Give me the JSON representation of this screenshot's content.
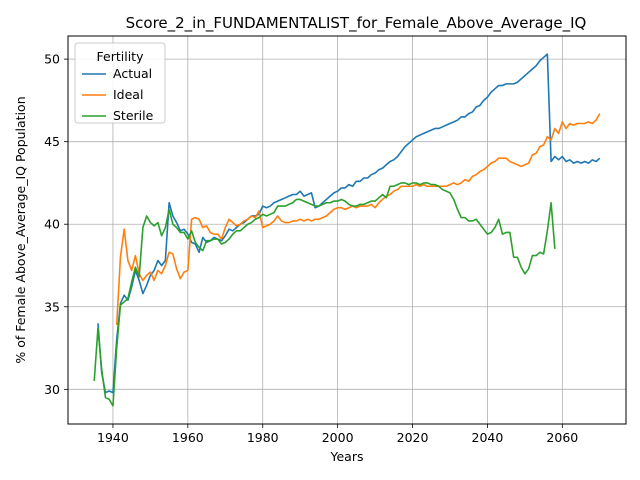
{
  "chart_data": {
    "type": "line",
    "title": "Score_2_in_FUNDAMENTALIST_for_Female_Above_Average_IQ",
    "xlabel": "Years",
    "ylabel": "% of Female Above_Average_IQ Population",
    "xlim": [
      1928,
      2077
    ],
    "ylim": [
      27.9,
      51.4
    ],
    "xticks": [
      1940,
      1960,
      1980,
      2000,
      2020,
      2040,
      2060
    ],
    "yticks": [
      30,
      35,
      40,
      45,
      50
    ],
    "grid": true,
    "legend": {
      "title": "Fertility",
      "placement": "top-left"
    },
    "colors": {
      "Actual": "#1f77b4",
      "Ideal": "#ff7f0e",
      "Sterile": "#2ca02c"
    },
    "series": [
      {
        "name": "Actual",
        "x": [
          1936,
          1937,
          1938,
          1939,
          1940,
          1941,
          1942,
          1943,
          1944,
          1945,
          1946,
          1947,
          1948,
          1949,
          1950,
          1951,
          1952,
          1953,
          1954,
          1955,
          1956,
          1957,
          1958,
          1959,
          1960,
          1961,
          1962,
          1963,
          1964,
          1965,
          1966,
          1967,
          1968,
          1969,
          1970,
          1971,
          1972,
          1973,
          1974,
          1975,
          1976,
          1977,
          1978,
          1979,
          1980,
          1981,
          1982,
          1983,
          1984,
          1985,
          1986,
          1987,
          1988,
          1989,
          1990,
          1991,
          1992,
          1993,
          1994,
          1995,
          1996,
          1997,
          1998,
          1999,
          2000,
          2001,
          2002,
          2003,
          2004,
          2005,
          2006,
          2007,
          2008,
          2009,
          2010,
          2011,
          2012,
          2013,
          2014,
          2015,
          2016,
          2017,
          2018,
          2019,
          2020,
          2021,
          2022,
          2023,
          2024,
          2025,
          2026,
          2027,
          2028,
          2029,
          2030,
          2031,
          2032,
          2033,
          2034,
          2035,
          2036,
          2037,
          2038,
          2039,
          2040,
          2041,
          2042,
          2043,
          2044,
          2045,
          2046,
          2047,
          2048,
          2049,
          2050,
          2051,
          2052,
          2053,
          2054,
          2055,
          2056,
          2057,
          2058,
          2059,
          2060,
          2061,
          2062,
          2063,
          2064,
          2065,
          2066,
          2067,
          2068,
          2069,
          2070
        ],
        "values": [
          34.0,
          31.0,
          29.8,
          29.9,
          29.8,
          33.0,
          35.2,
          35.7,
          35.4,
          36.2,
          37.2,
          36.6,
          35.8,
          36.3,
          36.9,
          37.2,
          37.8,
          37.5,
          37.8,
          41.3,
          40.5,
          40.1,
          39.6,
          39.7,
          39.4,
          38.9,
          38.8,
          38.3,
          39.2,
          38.9,
          39.0,
          39.2,
          39.1,
          39.0,
          39.3,
          39.7,
          39.6,
          39.8,
          40.0,
          40.1,
          40.3,
          40.5,
          40.5,
          40.6,
          41.1,
          41.0,
          41.1,
          41.3,
          41.4,
          41.5,
          41.6,
          41.7,
          41.8,
          41.8,
          42.0,
          41.7,
          41.8,
          41.9,
          41.0,
          41.1,
          41.3,
          41.5,
          41.7,
          41.9,
          42.0,
          42.2,
          42.2,
          42.4,
          42.3,
          42.6,
          42.6,
          42.8,
          42.8,
          43.0,
          43.1,
          43.3,
          43.4,
          43.6,
          43.8,
          43.9,
          44.1,
          44.4,
          44.7,
          44.9,
          45.1,
          45.3,
          45.4,
          45.5,
          45.6,
          45.7,
          45.8,
          45.8,
          45.9,
          46.0,
          46.1,
          46.2,
          46.3,
          46.5,
          46.5,
          46.7,
          46.8,
          47.1,
          47.2,
          47.5,
          47.7,
          48.0,
          48.2,
          48.4,
          48.4,
          48.5,
          48.5,
          48.5,
          48.6,
          48.8,
          49.0,
          49.2,
          49.4,
          49.6,
          49.9,
          50.1,
          50.3,
          43.8,
          44.1,
          43.9,
          44.1,
          43.8,
          43.9,
          43.7,
          43.8,
          43.7,
          43.8,
          43.7,
          43.9,
          43.8,
          44.0
        ],
        "series_note_omitted": true
      },
      {
        "name": "Ideal",
        "x": [
          1941,
          1942,
          1943,
          1944,
          1945,
          1946,
          1947,
          1948,
          1949,
          1950,
          1951,
          1952,
          1953,
          1954,
          1955,
          1956,
          1957,
          1958,
          1959,
          1960,
          1961,
          1962,
          1963,
          1964,
          1965,
          1966,
          1967,
          1968,
          1969,
          1970,
          1971,
          1972,
          1973,
          1974,
          1975,
          1976,
          1977,
          1978,
          1979,
          1980,
          1981,
          1982,
          1983,
          1984,
          1985,
          1986,
          1987,
          1988,
          1989,
          1990,
          1991,
          1992,
          1993,
          1994,
          1995,
          1996,
          1997,
          1998,
          1999,
          2000,
          2001,
          2002,
          2003,
          2004,
          2005,
          2006,
          2007,
          2008,
          2009,
          2010,
          2011,
          2012,
          2013,
          2014,
          2015,
          2016,
          2017,
          2018,
          2019,
          2020,
          2021,
          2022,
          2023,
          2024,
          2025,
          2026,
          2027,
          2028,
          2029,
          2030,
          2031,
          2032,
          2033,
          2034,
          2035,
          2036,
          2037,
          2038,
          2039,
          2040,
          2041,
          2042,
          2043,
          2044,
          2045,
          2046,
          2047,
          2048,
          2049,
          2050,
          2051,
          2052,
          2053,
          2054,
          2055,
          2056,
          2057,
          2058,
          2059,
          2060,
          2061,
          2062,
          2063,
          2064,
          2065,
          2066,
          2067,
          2068,
          2069,
          2070
        ],
        "values": [
          33.9,
          38.0,
          39.7,
          37.8,
          37.2,
          38.1,
          37.0,
          36.6,
          36.9,
          37.1,
          36.6,
          37.2,
          37.0,
          37.5,
          38.3,
          38.2,
          37.3,
          36.7,
          37.1,
          37.2,
          40.3,
          40.4,
          40.3,
          39.8,
          39.9,
          39.5,
          39.4,
          39.4,
          39.1,
          39.8,
          40.3,
          40.1,
          39.9,
          40.0,
          40.2,
          40.3,
          40.5,
          40.4,
          40.8,
          39.8,
          39.9,
          40.0,
          40.2,
          40.5,
          40.2,
          40.1,
          40.1,
          40.2,
          40.2,
          40.3,
          40.2,
          40.3,
          40.2,
          40.3,
          40.3,
          40.4,
          40.5,
          40.7,
          40.9,
          41.0,
          41.0,
          40.9,
          41.0,
          41.1,
          41.0,
          41.1,
          41.1,
          41.1,
          41.2,
          41.0,
          41.3,
          41.5,
          41.7,
          41.8,
          42.0,
          42.1,
          42.3,
          42.3,
          42.3,
          42.3,
          42.4,
          42.3,
          42.4,
          42.3,
          42.3,
          42.3,
          42.3,
          42.3,
          42.3,
          42.4,
          42.5,
          42.4,
          42.5,
          42.7,
          42.6,
          42.9,
          43.0,
          43.2,
          43.3,
          43.5,
          43.7,
          43.8,
          44.0,
          44.0,
          44.0,
          43.8,
          43.7,
          43.6,
          43.5,
          43.6,
          43.7,
          44.2,
          44.3,
          44.7,
          44.8,
          45.3,
          45.1,
          45.8,
          45.5,
          46.2,
          45.8,
          46.1,
          46.0,
          46.1,
          46.1,
          46.1,
          46.2,
          46.1,
          46.3,
          46.7
        ]
      },
      {
        "name": "Sterile",
        "x": [
          1935,
          1936,
          1937,
          1938,
          1939,
          1940,
          1941,
          1942,
          1943,
          1944,
          1945,
          1946,
          1947,
          1948,
          1949,
          1950,
          1951,
          1952,
          1953,
          1954,
          1955,
          1956,
          1957,
          1958,
          1959,
          1960,
          1961,
          1962,
          1963,
          1964,
          1965,
          1966,
          1967,
          1968,
          1969,
          1970,
          1971,
          1972,
          1973,
          1974,
          1975,
          1976,
          1977,
          1978,
          1979,
          1980,
          1981,
          1982,
          1983,
          1984,
          1985,
          1986,
          1987,
          1988,
          1989,
          1990,
          1991,
          1992,
          1993,
          1994,
          1995,
          1996,
          1997,
          1998,
          1999,
          2000,
          2001,
          2002,
          2003,
          2004,
          2005,
          2006,
          2007,
          2008,
          2009,
          2010,
          2011,
          2012,
          2013,
          2014,
          2015,
          2016,
          2017,
          2018,
          2019,
          2020,
          2021,
          2022,
          2023,
          2024,
          2025,
          2026,
          2027,
          2028,
          2029,
          2030,
          2031,
          2032,
          2033,
          2034,
          2035,
          2036,
          2037,
          2038,
          2039,
          2040,
          2041,
          2042,
          2043,
          2044,
          2045,
          2046,
          2047,
          2048,
          2049,
          2050,
          2051,
          2052,
          2053,
          2054,
          2055,
          2056,
          2057,
          2058
        ],
        "values": [
          30.5,
          33.7,
          31.2,
          29.5,
          29.4,
          29.0,
          32.5,
          35.1,
          35.3,
          35.5,
          36.5,
          37.4,
          36.8,
          39.8,
          40.5,
          40.1,
          39.9,
          40.1,
          39.3,
          39.8,
          40.9,
          40.0,
          39.8,
          39.5,
          39.5,
          39.1,
          39.6,
          38.9,
          38.6,
          38.4,
          39.0,
          39.0,
          39.1,
          39.1,
          38.8,
          38.9,
          39.1,
          39.4,
          39.6,
          39.6,
          39.8,
          40.0,
          40.1,
          40.3,
          40.4,
          40.6,
          40.5,
          40.6,
          40.7,
          41.1,
          41.1,
          41.1,
          41.2,
          41.3,
          41.5,
          41.5,
          41.4,
          41.3,
          41.2,
          41.1,
          41.1,
          41.2,
          41.3,
          41.3,
          41.4,
          41.4,
          41.5,
          41.4,
          41.2,
          41.1,
          41.1,
          41.2,
          41.2,
          41.3,
          41.4,
          41.4,
          41.6,
          41.8,
          41.6,
          42.3,
          42.3,
          42.4,
          42.5,
          42.5,
          42.4,
          42.5,
          42.5,
          42.4,
          42.5,
          42.5,
          42.4,
          42.4,
          42.3,
          42.1,
          42.0,
          41.9,
          41.5,
          40.9,
          40.4,
          40.4,
          40.2,
          40.2,
          40.3,
          40.0,
          39.7,
          39.4,
          39.5,
          39.8,
          40.3,
          39.4,
          39.5,
          39.5,
          38.0,
          38.0,
          37.4,
          37.0,
          37.3,
          38.1,
          38.1,
          38.3,
          38.2,
          39.6,
          41.3,
          38.5
        ]
      }
    ]
  }
}
